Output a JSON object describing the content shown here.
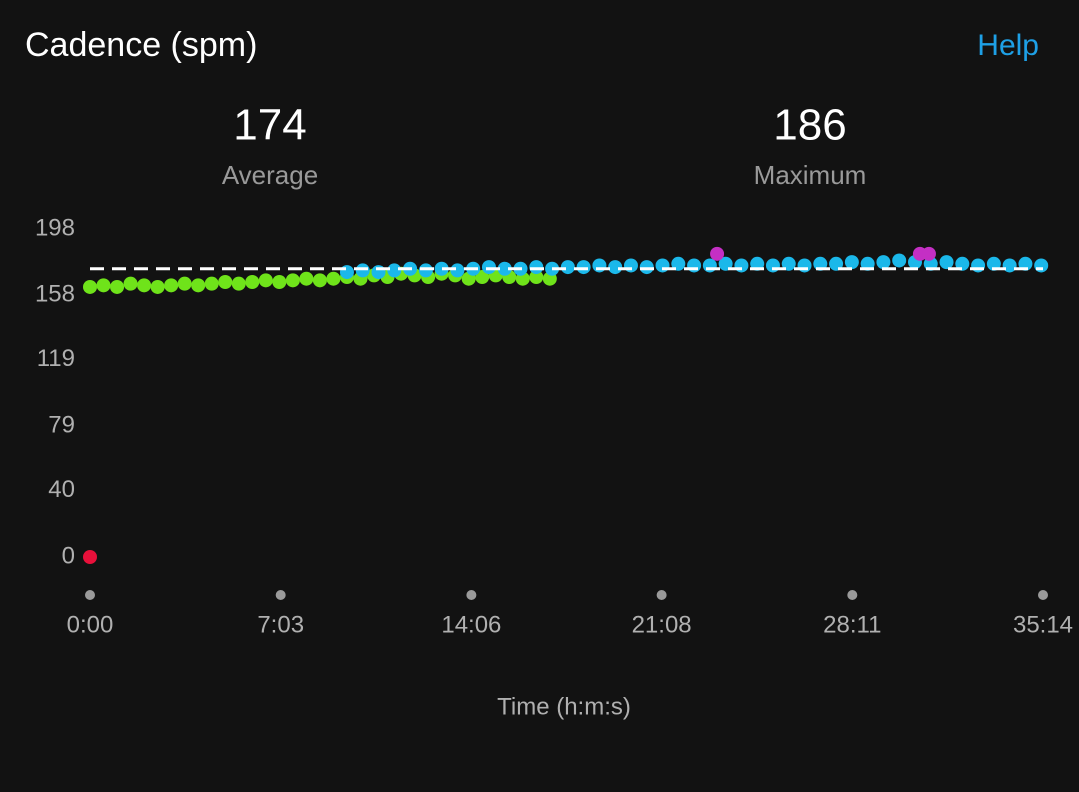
{
  "header": {
    "title": "Cadence (spm)",
    "help": "Help"
  },
  "summary": [
    {
      "value": 174,
      "label": "Average"
    },
    {
      "value": 186,
      "label": "Maximum"
    }
  ],
  "chart_data": {
    "type": "scatter",
    "x_label": "Time (h:m:s)",
    "xlim": [
      0,
      2114
    ],
    "ylim": [
      0,
      198
    ],
    "xticks": [
      {
        "value": 0,
        "label": "0:00"
      },
      {
        "value": 423,
        "label": "7:03"
      },
      {
        "value": 846,
        "label": "14:06"
      },
      {
        "value": 1268,
        "label": "21:08"
      },
      {
        "value": 1691,
        "label": "28:11"
      },
      {
        "value": 2114,
        "label": "35:14"
      }
    ],
    "yticks": [
      0,
      40,
      79,
      119,
      158,
      198
    ],
    "series": [
      {
        "color": "#6fe31a",
        "x": [
          0,
          30,
          60,
          90,
          120,
          150,
          180,
          210,
          240,
          270,
          300,
          330,
          360,
          390,
          420,
          450,
          480,
          510,
          540,
          570,
          600,
          630,
          660,
          690,
          720,
          750,
          780,
          810,
          840,
          870,
          900,
          930,
          960,
          990,
          1020
        ],
        "values": [
          163,
          164,
          163,
          165,
          164,
          163,
          164,
          165,
          164,
          165,
          166,
          165,
          166,
          167,
          166,
          167,
          168,
          167,
          168,
          169,
          168,
          170,
          169,
          171,
          170,
          169,
          171,
          170,
          168,
          169,
          170,
          169,
          168,
          169,
          168
        ]
      },
      {
        "color": "#1bb8ea",
        "x": [
          570,
          605,
          640,
          675,
          710,
          745,
          780,
          815,
          850,
          885,
          920,
          955,
          990,
          1025,
          1060,
          1095,
          1130,
          1165,
          1200,
          1235,
          1270,
          1305,
          1340,
          1375,
          1410,
          1445,
          1480,
          1515,
          1550,
          1585,
          1620,
          1655,
          1690,
          1725,
          1760,
          1795,
          1830,
          1865,
          1900,
          1935,
          1970,
          2005,
          2040,
          2075,
          2110
        ],
        "values": [
          172,
          173,
          172,
          173,
          174,
          173,
          174,
          173,
          174,
          175,
          174,
          174,
          175,
          174,
          175,
          175,
          176,
          175,
          176,
          175,
          176,
          177,
          176,
          176,
          177,
          176,
          177,
          176,
          177,
          176,
          177,
          177,
          178,
          177,
          178,
          179,
          178,
          177,
          178,
          177,
          176,
          177,
          176,
          177,
          176
        ]
      },
      {
        "color": "#c42fc4",
        "x": [
          1391,
          1841,
          1861
        ],
        "values": [
          183,
          183,
          183
        ]
      },
      {
        "color": "#e8103a",
        "x": [
          0
        ],
        "values": [
          0
        ]
      }
    ]
  }
}
